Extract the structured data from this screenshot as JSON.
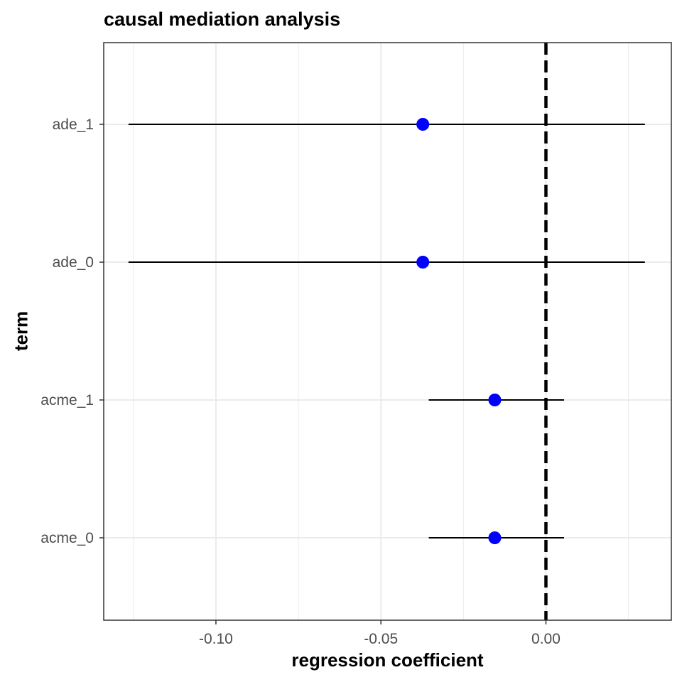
{
  "chart_data": {
    "type": "scatter",
    "subtype": "coefficient-plot",
    "title": "causal mediation analysis",
    "xlabel": "regression coefficient",
    "ylabel": "term",
    "xlim": [
      -0.134,
      0.038
    ],
    "x_ticks": [
      -0.1,
      -0.05,
      0.0
    ],
    "x_tick_labels": [
      "-0.10",
      "-0.05",
      "0.00"
    ],
    "categories": [
      "acme_0",
      "acme_1",
      "ade_0",
      "ade_1"
    ],
    "series": [
      {
        "estimate": [
          -0.0155,
          -0.0155,
          -0.0373,
          -0.0373
        ],
        "conf_low": [
          -0.0355,
          -0.0355,
          -0.1265,
          -0.1265
        ],
        "conf_high": [
          0.0055,
          0.0055,
          0.03,
          0.03
        ]
      }
    ],
    "reference_line": {
      "x": 0,
      "style": "dashed"
    },
    "grid": true,
    "theme": "bw",
    "colors": {
      "point": "#0000ff",
      "errorbar": "#000000",
      "reference_line": "#000000",
      "grid": "#ebebeb",
      "panel_border": "#333333"
    }
  }
}
